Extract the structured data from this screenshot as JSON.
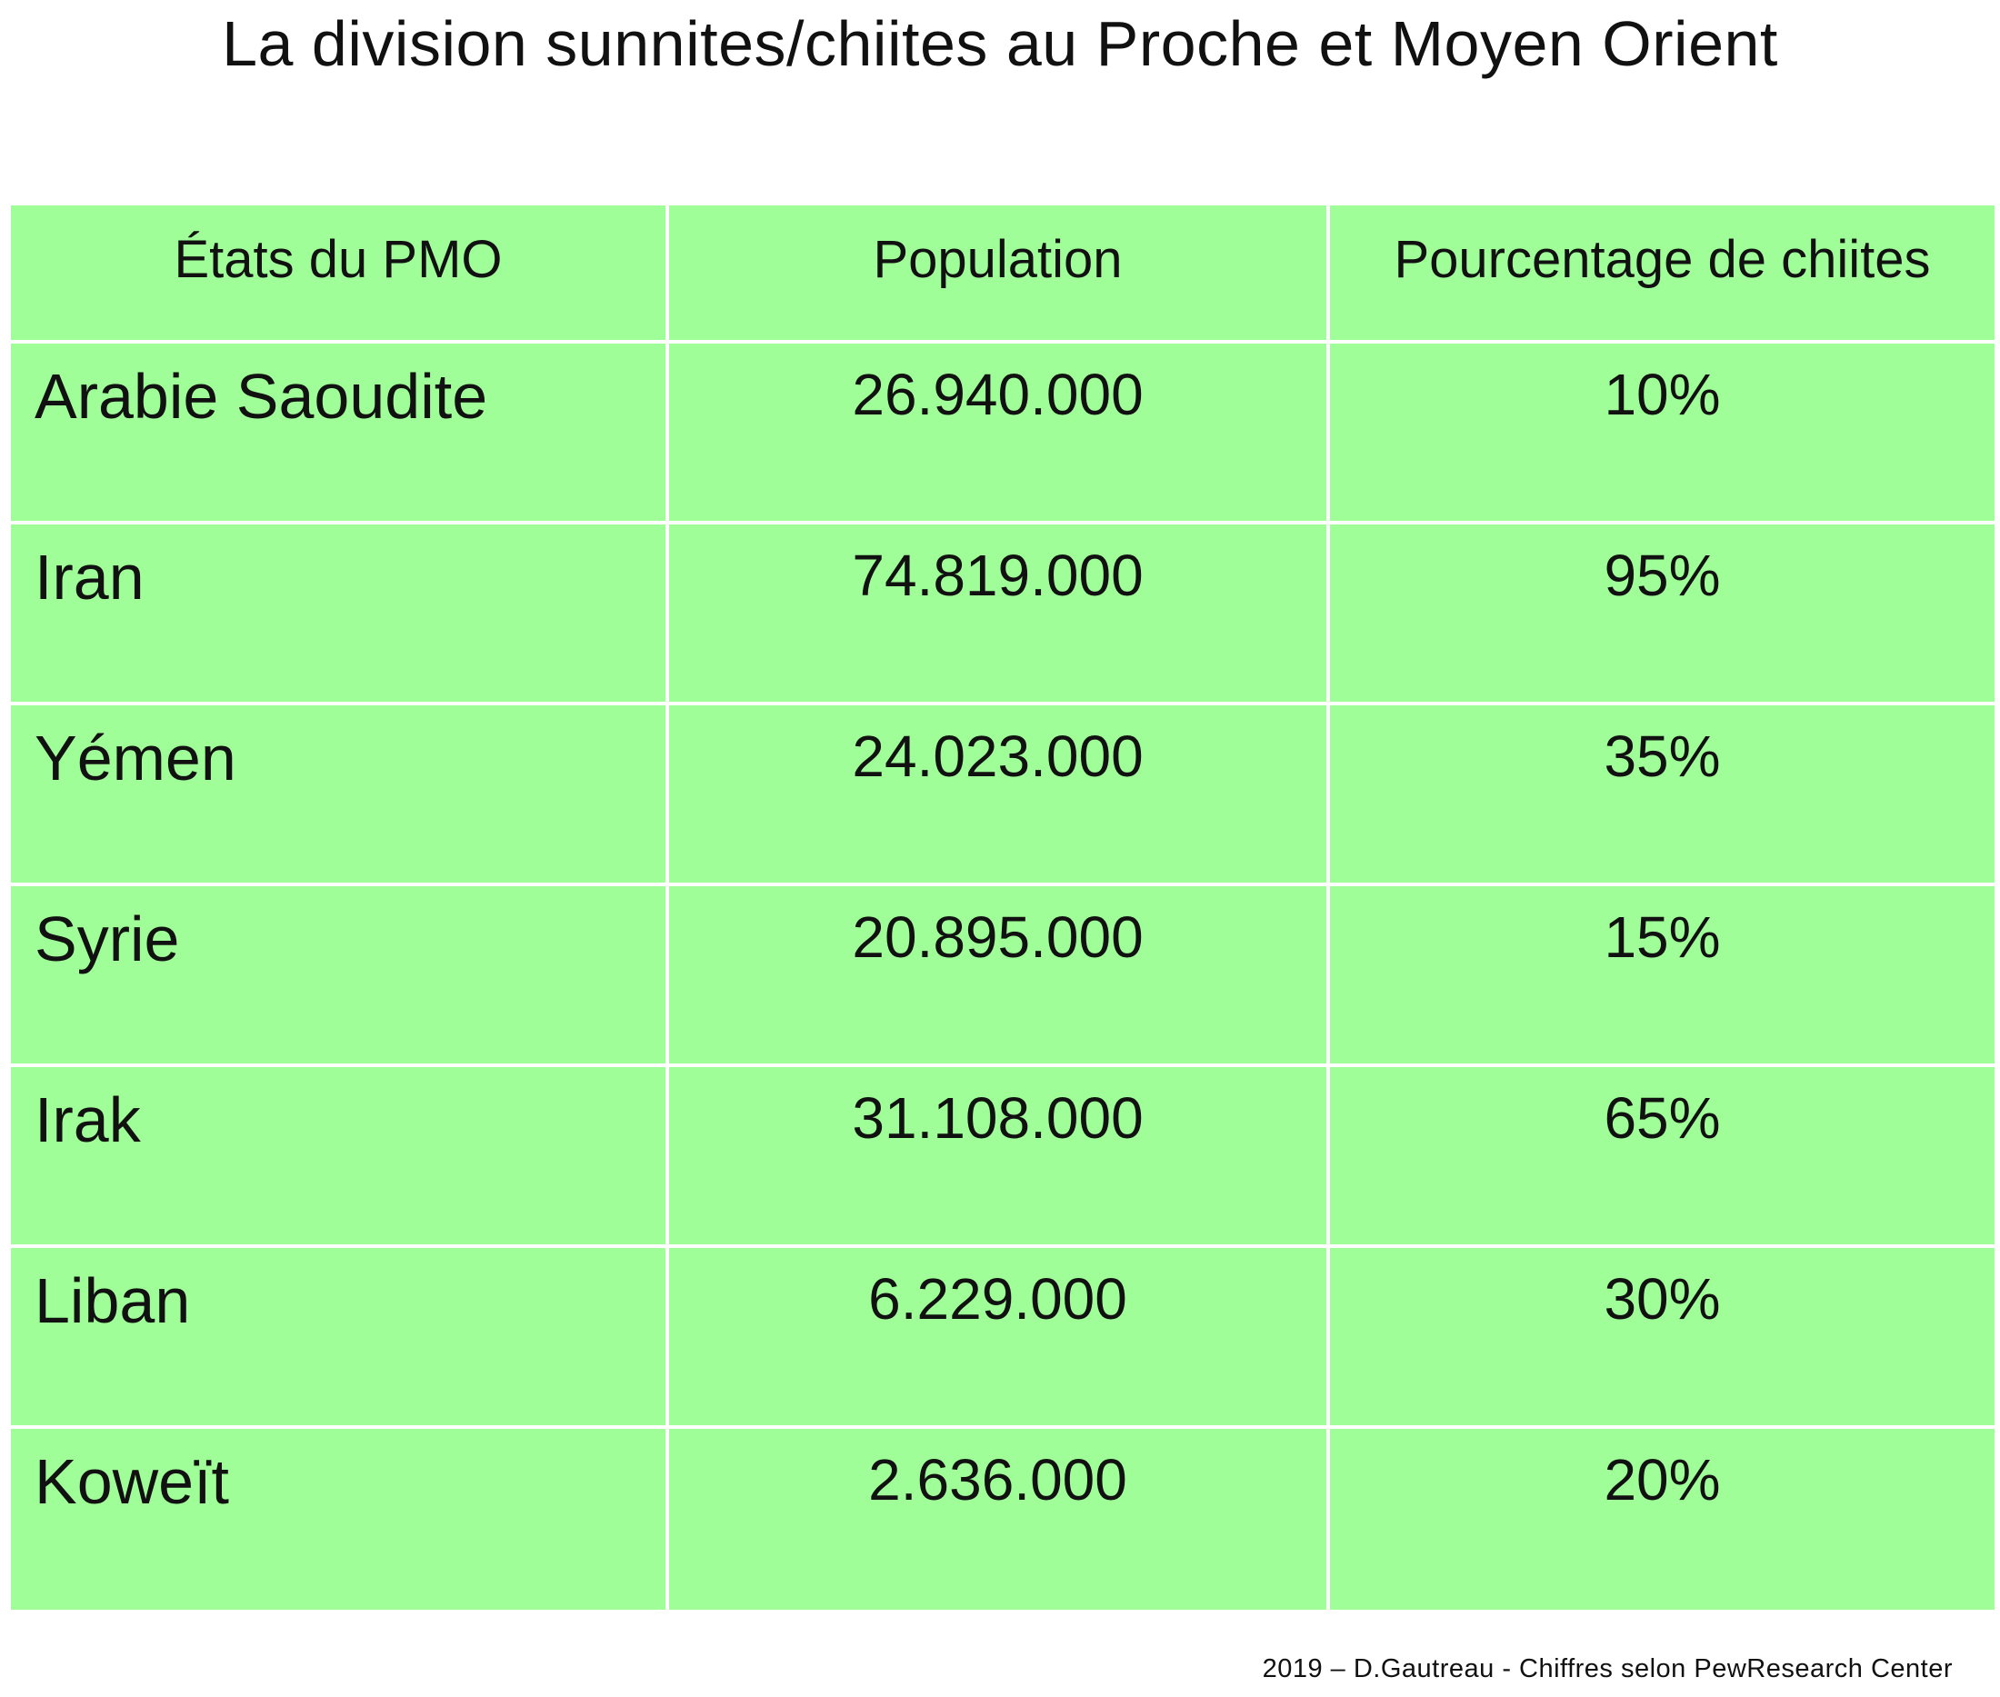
{
  "title": "La division sunnites/chiites au Proche et Moyen Orient",
  "table": {
    "headers": [
      "États du PMO",
      "Population",
      "Pourcentage de chiites"
    ],
    "rows": [
      {
        "state": "Arabie Saoudite",
        "population": "26.940.000",
        "percent_shia": "10%"
      },
      {
        "state": "Iran",
        "population": "74.819.000",
        "percent_shia": "95%"
      },
      {
        "state": "Yémen",
        "population": "24.023.000",
        "percent_shia": "35%"
      },
      {
        "state": "Syrie",
        "population": "20.895.000",
        "percent_shia": "15%"
      },
      {
        "state": "Irak",
        "population": "31.108.000",
        "percent_shia": "65%"
      },
      {
        "state": "Liban",
        "population": "6.229.000",
        "percent_shia": "30%"
      },
      {
        "state": "Koweït",
        "population": "2.636.000",
        "percent_shia": "20%"
      }
    ]
  },
  "footer": "2019 – D.Gautreau - Chiffres selon PewResearch Center",
  "colors": {
    "cell_background": "#a0fe98",
    "grid_lines": "#ffffff",
    "text": "#111111"
  }
}
